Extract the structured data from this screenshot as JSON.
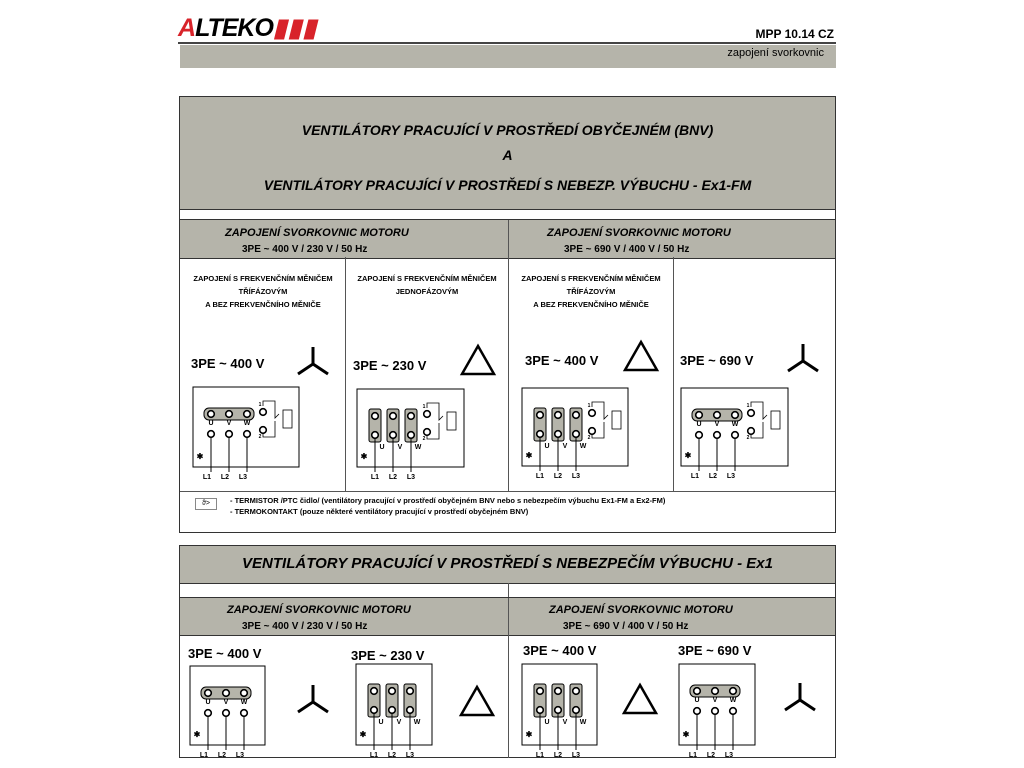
{
  "header": {
    "logo": "ALTEKO",
    "doc_code": "MPP 10.14 CZ",
    "subtitle": "zapojení svorkovnic"
  },
  "section1": {
    "title_line1": "VENTILÁTORY PRACUJÍCÍ V PROSTŘEDÍ OBYČEJNÉM (BNV)",
    "title_line2": "A",
    "title_line3": "VENTILÁTORY PRACUJÍCÍ V PROSTŘEDÍ S NEBEZP. VÝBUCHU - Ex1-FM",
    "groups": [
      {
        "title": "ZAPOJENÍ SVORKOVNIC MOTORU",
        "voltage": "3PE ~ 400 V / 230 V / 50 Hz"
      },
      {
        "title": "ZAPOJENÍ SVORKOVNIC MOTORU",
        "voltage": "3PE ~ 690 V / 400 V / 50 Hz"
      }
    ],
    "columns": [
      {
        "note": [
          "ZAPOJENÍ S FREKVENČNÍM MĚNIČEM",
          "TŘÍFÁZOVÝM",
          "A BEZ FREKVENČNÍHO MĚNIČE"
        ],
        "supply": "3PE ~ 400 V",
        "connection": "star"
      },
      {
        "note": [
          "ZAPOJENÍ S FREKVENČNÍM MĚNIČEM",
          "JEDNOFÁZOVÝM",
          ""
        ],
        "supply": "3PE ~ 230 V",
        "connection": "delta"
      },
      {
        "note": [
          "ZAPOJENÍ S FREKVENČNÍM MĚNIČEM",
          "TŘÍFÁZOVÝM",
          "A BEZ FREKVENČNÍHO MĚNIČE"
        ],
        "supply": "3PE ~ 400 V",
        "connection": "delta"
      },
      {
        "note": [
          "",
          "",
          ""
        ],
        "supply": "3PE ~ 690 V",
        "connection": "star"
      }
    ],
    "footnote": {
      "symbol": "ϑ>",
      "line1": "- TERMISTOR /PTC čidlo/ (ventilátory pracující v prostředí obyčejném BNV nebo s nebezpečím výbuchu Ex1-FM a Ex2-FM)",
      "line2": "- TERMOKONTAKT (pouze některé ventilátory pracující v prostředí obyčejném BNV)"
    }
  },
  "section2": {
    "title": "VENTILÁTORY PRACUJÍCÍ V PROSTŘEDÍ S NEBEZPEČÍM VÝBUCHU - Ex1",
    "groups": [
      {
        "title": "ZAPOJENÍ SVORKOVNIC MOTORU",
        "voltage": "3PE ~ 400 V / 230 V / 50 Hz"
      },
      {
        "title": "ZAPOJENÍ SVORKOVNIC MOTORU",
        "voltage": "3PE ~ 690 V / 400 V / 50 Hz"
      }
    ],
    "columns": [
      {
        "supply": "3PE ~ 400 V",
        "connection": "star"
      },
      {
        "supply": "3PE ~ 230 V",
        "connection": "delta"
      },
      {
        "supply": "3PE ~ 400 V",
        "connection": "delta"
      },
      {
        "supply": "3PE ~ 690 V",
        "connection": "star"
      }
    ]
  },
  "terminals": {
    "motor": [
      "U",
      "V",
      "W"
    ],
    "lines": [
      "L1",
      "L2",
      "L3"
    ],
    "thermal": [
      "1",
      "2"
    ]
  },
  "colors": {
    "panel_gray": "#b5b4aa",
    "logo_red": "#d8232a"
  }
}
